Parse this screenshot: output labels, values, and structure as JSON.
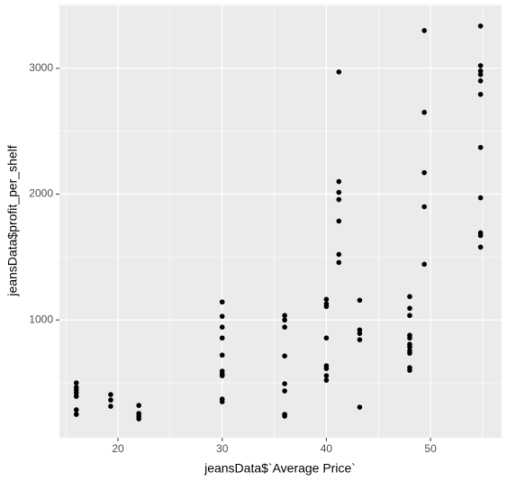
{
  "chart_data": {
    "type": "scatter",
    "x_label": "jeansData$`Average Price`",
    "y_label": "jeansData$profit_per_shelf",
    "xlim": [
      14.38,
      56.82
    ],
    "ylim": [
      64,
      3507
    ],
    "xticks": [
      20,
      30,
      40,
      50
    ],
    "yticks": [
      1000,
      2000,
      3000
    ],
    "minor_xticks": [
      15,
      25,
      35,
      45,
      55
    ],
    "minor_yticks": [
      500,
      1500,
      2500,
      3500
    ],
    "grid": true,
    "color": "#000000",
    "x": [
      16,
      16,
      16,
      16,
      16,
      16,
      16,
      19.3,
      19.3,
      19.3,
      22,
      22,
      22,
      22,
      30,
      30,
      30,
      30,
      30,
      30,
      30,
      30,
      30,
      30,
      36,
      36,
      36,
      36,
      36,
      36,
      36,
      36,
      40,
      40,
      40,
      40,
      40,
      40,
      40,
      40,
      41.2,
      41.2,
      41.2,
      41.2,
      41.2,
      41.2,
      41.2,
      43.2,
      43.2,
      43.2,
      43.2,
      43.2,
      48,
      48,
      48,
      48,
      48,
      48,
      48,
      48,
      48,
      48,
      48,
      49.4,
      49.4,
      49.4,
      49.4,
      49.4,
      54.8,
      54.8,
      54.8,
      54.8,
      54.8,
      54.8,
      54.8,
      54.8,
      54.8,
      54.8,
      54.8
    ],
    "y": [
      500,
      464,
      443,
      421,
      393,
      286,
      250,
      407,
      364,
      314,
      321,
      257,
      236,
      214,
      1143,
      1029,
      943,
      857,
      721,
      593,
      571,
      557,
      371,
      350,
      1036,
      1000,
      943,
      714,
      493,
      436,
      250,
      236,
      1164,
      1129,
      1107,
      857,
      636,
      614,
      557,
      521,
      2971,
      2100,
      2014,
      1957,
      1786,
      1521,
      1457,
      1157,
      921,
      893,
      843,
      307,
      1186,
      1093,
      1036,
      879,
      857,
      807,
      786,
      757,
      736,
      621,
      600,
      3300,
      2650,
      2171,
      1900,
      1443,
      3336,
      3021,
      2979,
      2950,
      2900,
      2793,
      2371,
      1971,
      1693,
      1671,
      1579
    ]
  }
}
